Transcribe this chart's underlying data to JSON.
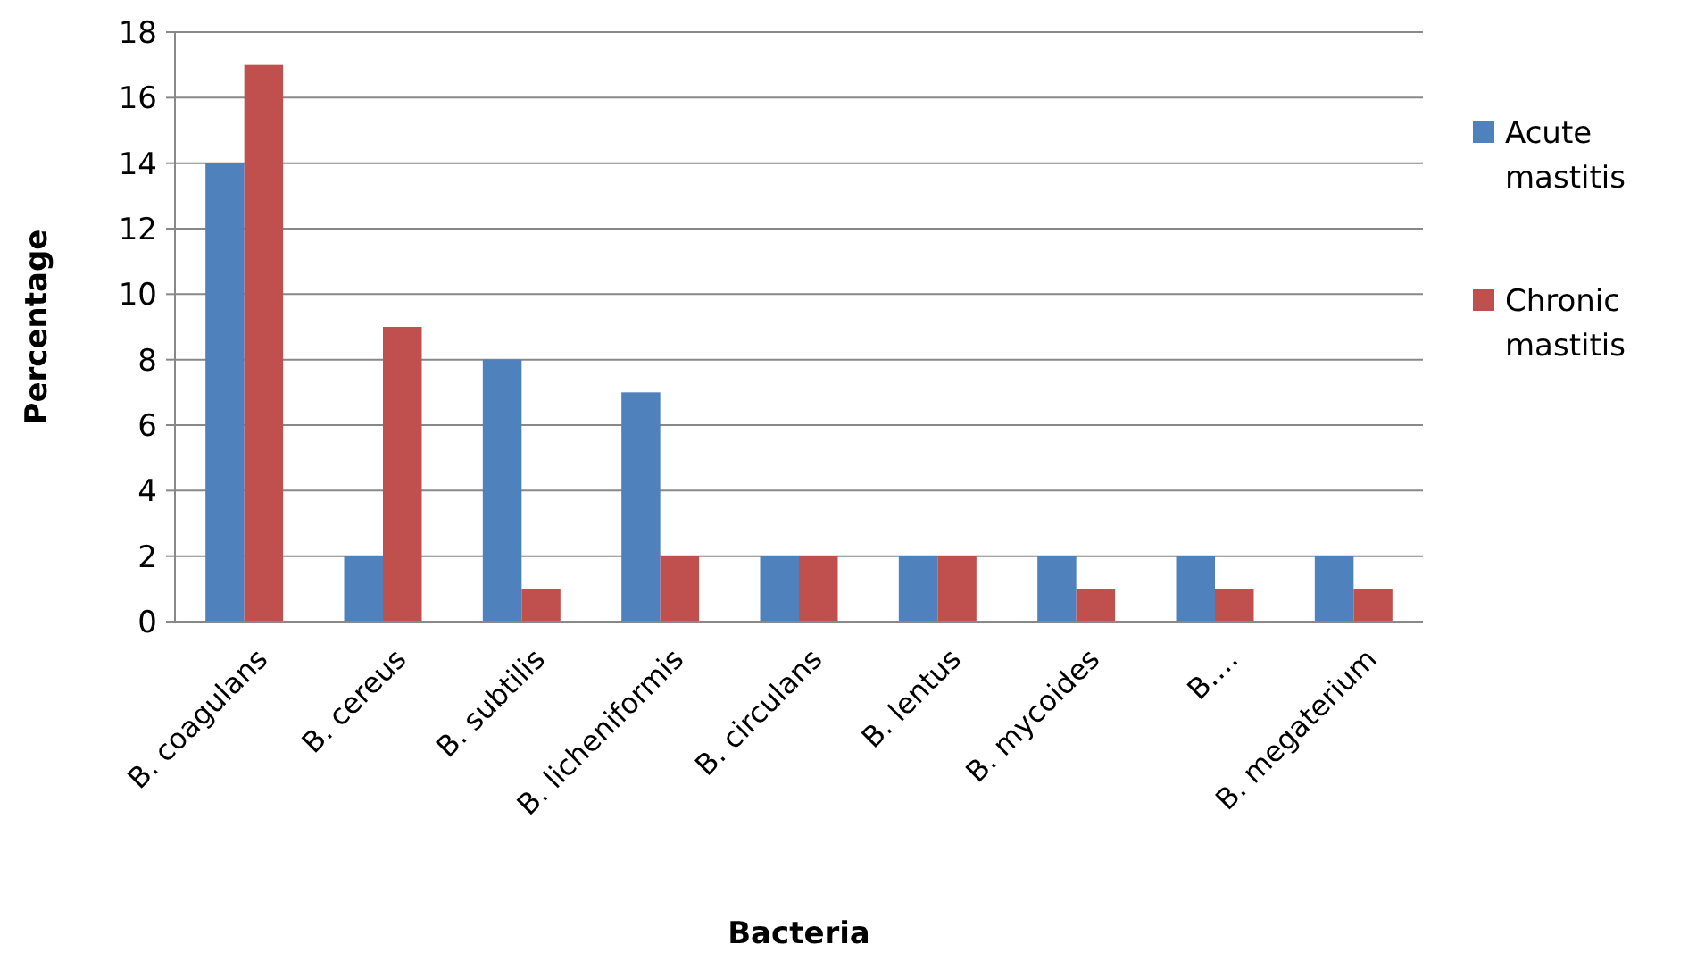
{
  "chart_data": {
    "type": "bar",
    "xlabel": "Bacteria",
    "ylabel": "Percentage",
    "categories": [
      "B. coagulans",
      "B. cereus",
      "B. subtilis",
      "B. licheniformis",
      "B. circulans",
      "B. lentus",
      "B. mycoides",
      "B.…",
      "B. megaterium"
    ],
    "series": [
      {
        "name": "Acute mastitis",
        "color": "#4f81bd",
        "values": [
          14,
          2,
          8,
          7,
          2,
          2,
          2,
          2,
          2
        ]
      },
      {
        "name": "Chronic mastitis",
        "color": "#c0504d",
        "values": [
          17,
          9,
          1,
          2,
          2,
          2,
          1,
          1,
          1
        ]
      }
    ],
    "ylim": [
      0,
      18
    ],
    "yticks": [
      0,
      2,
      4,
      6,
      8,
      10,
      12,
      14,
      16,
      18
    ],
    "grid": "y",
    "legend": "right"
  }
}
